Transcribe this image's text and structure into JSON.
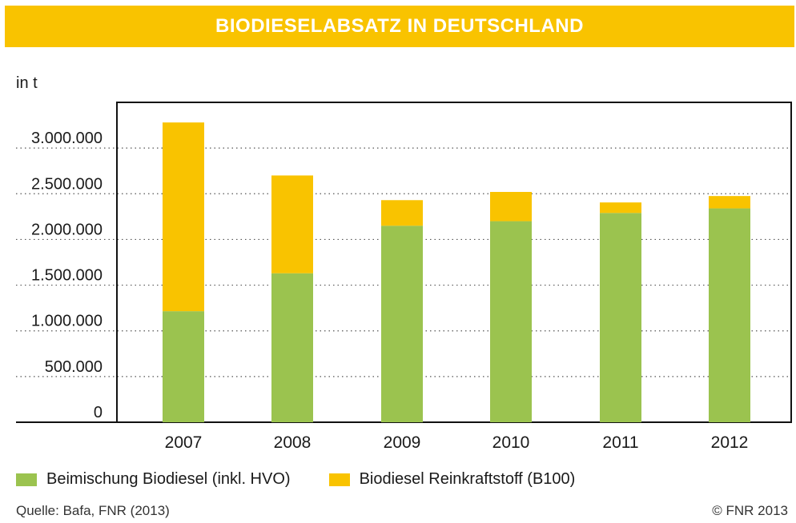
{
  "title": "BIODIESELABSATZ IN DEUTSCHLAND",
  "source": "Quelle: Bafa, FNR (2013)",
  "copyright": "© FNR 2013",
  "colors": {
    "title_bg": "#f9c300",
    "green": "#9bc34f",
    "yellow": "#f9c300"
  },
  "chart_data": {
    "type": "bar",
    "stacked": true,
    "title": "BIODIESELABSATZ IN DEUTSCHLAND",
    "ylabel": "in t",
    "xlabel": "",
    "categories": [
      "2007",
      "2008",
      "2009",
      "2010",
      "2011",
      "2012"
    ],
    "series": [
      {
        "name": "Beimischung Biodiesel (inkl. HVO)",
        "color": "#9bc34f",
        "values": [
          1215000,
          1630000,
          2150000,
          2200000,
          2290000,
          2340000
        ]
      },
      {
        "name": "Biodiesel Reinkraftstoff (B100)",
        "color": "#f9c300",
        "values": [
          2065000,
          1070000,
          280000,
          320000,
          115000,
          135000
        ]
      }
    ],
    "yticks": [
      0,
      500000,
      1000000,
      1500000,
      2000000,
      2500000,
      3000000
    ],
    "ytick_labels": [
      "0",
      "500.000",
      "1.000.000",
      "1.500.000",
      "2.000.000",
      "2.500.000",
      "3.000.000"
    ],
    "ylim": [
      0,
      3500000
    ],
    "grid": "dotted horizontal",
    "legend": "bottom"
  }
}
